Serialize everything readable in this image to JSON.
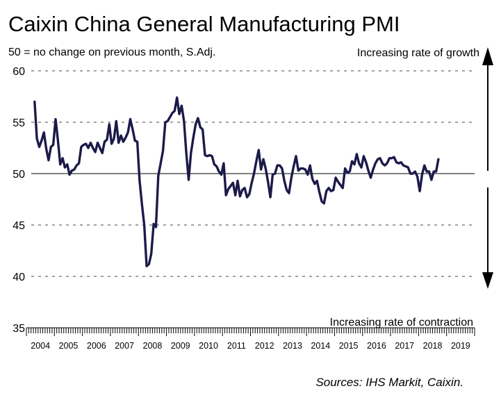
{
  "chart_data": {
    "type": "line",
    "title": "Caixin China General Manufacturing PMI",
    "subtitle": "50 = no change on previous month, S.Adj.",
    "upper_note": "Increasing rate of growth",
    "lower_note": "Increasing rate of contraction",
    "source": "Sources: IHS Markit, Caixin.",
    "xlabel": "",
    "ylabel": "",
    "ylim": [
      35,
      60
    ],
    "yticks": [
      35,
      40,
      45,
      50,
      55,
      60
    ],
    "reference_line": 50,
    "grid": "horizontal dashed",
    "x_categories": [
      "2004",
      "2005",
      "2006",
      "2007",
      "2008",
      "2009",
      "2010",
      "2011",
      "2012",
      "2013",
      "2014",
      "2015",
      "2016",
      "2017",
      "2018",
      "2019"
    ],
    "x_start": "2004-04",
    "x_end": "2019-07",
    "series": [
      {
        "color": "#1c1a4a",
        "points": [
          [
            "2004-04",
            57.0
          ],
          [
            "2004-05",
            53.4
          ],
          [
            "2004-06",
            52.6
          ],
          [
            "2004-07",
            53.2
          ],
          [
            "2004-08",
            54.0
          ],
          [
            "2004-09",
            52.4
          ],
          [
            "2004-10",
            51.3
          ],
          [
            "2004-11",
            52.6
          ],
          [
            "2004-12",
            52.8
          ],
          [
            "2005-01",
            55.3
          ],
          [
            "2005-02",
            53.2
          ],
          [
            "2005-03",
            50.9
          ],
          [
            "2005-04",
            51.5
          ],
          [
            "2005-05",
            50.6
          ],
          [
            "2005-06",
            50.9
          ],
          [
            "2005-07",
            49.9
          ],
          [
            "2005-08",
            50.3
          ],
          [
            "2005-09",
            50.4
          ],
          [
            "2005-10",
            50.8
          ],
          [
            "2005-11",
            51.0
          ],
          [
            "2005-12",
            52.6
          ],
          [
            "2006-01",
            52.8
          ],
          [
            "2006-02",
            52.9
          ],
          [
            "2006-03",
            52.5
          ],
          [
            "2006-04",
            53.0
          ],
          [
            "2006-05",
            52.5
          ],
          [
            "2006-06",
            52.1
          ],
          [
            "2006-07",
            53.0
          ],
          [
            "2006-08",
            52.5
          ],
          [
            "2006-09",
            52.0
          ],
          [
            "2006-10",
            53.1
          ],
          [
            "2006-11",
            53.3
          ],
          [
            "2006-12",
            54.8
          ],
          [
            "2007-01",
            52.9
          ],
          [
            "2007-02",
            53.4
          ],
          [
            "2007-03",
            55.1
          ],
          [
            "2007-04",
            53.0
          ],
          [
            "2007-05",
            53.7
          ],
          [
            "2007-06",
            53.1
          ],
          [
            "2007-07",
            53.5
          ],
          [
            "2007-08",
            54.0
          ],
          [
            "2007-09",
            55.3
          ],
          [
            "2007-10",
            54.3
          ],
          [
            "2007-11",
            53.2
          ],
          [
            "2007-12",
            53.1
          ],
          [
            "2008-01",
            49.3
          ],
          [
            "2008-02",
            47.0
          ],
          [
            "2008-03",
            45.0
          ],
          [
            "2008-04",
            41.0
          ],
          [
            "2008-05",
            41.2
          ],
          [
            "2008-06",
            42.2
          ],
          [
            "2008-07",
            45.1
          ],
          [
            "2008-08",
            44.8
          ],
          [
            "2008-09",
            49.8
          ],
          [
            "2008-10",
            51.0
          ],
          [
            "2008-11",
            52.2
          ],
          [
            "2008-12",
            55.0
          ],
          [
            "2009-01",
            55.1
          ],
          [
            "2009-02",
            55.5
          ],
          [
            "2009-03",
            55.9
          ],
          [
            "2009-04",
            56.1
          ],
          [
            "2009-05",
            57.4
          ],
          [
            "2009-06",
            55.8
          ],
          [
            "2009-07",
            56.6
          ],
          [
            "2009-08",
            55.1
          ],
          [
            "2009-09",
            52.0
          ],
          [
            "2009-10",
            49.4
          ],
          [
            "2009-11",
            52.0
          ],
          [
            "2009-12",
            53.5
          ],
          [
            "2010-01",
            54.8
          ],
          [
            "2010-02",
            55.4
          ],
          [
            "2010-03",
            54.5
          ],
          [
            "2010-04",
            54.3
          ],
          [
            "2010-05",
            51.8
          ],
          [
            "2010-06",
            51.7
          ],
          [
            "2010-07",
            51.8
          ],
          [
            "2010-08",
            51.7
          ],
          [
            "2010-09",
            50.9
          ],
          [
            "2010-10",
            50.7
          ],
          [
            "2010-11",
            50.2
          ],
          [
            "2010-12",
            49.9
          ],
          [
            "2011-01",
            51.0
          ],
          [
            "2011-02",
            47.9
          ],
          [
            "2011-03",
            48.5
          ],
          [
            "2011-04",
            48.8
          ],
          [
            "2011-05",
            49.1
          ],
          [
            "2011-06",
            47.9
          ],
          [
            "2011-07",
            49.3
          ],
          [
            "2011-08",
            47.8
          ],
          [
            "2011-09",
            48.4
          ],
          [
            "2011-10",
            48.6
          ],
          [
            "2011-11",
            47.7
          ],
          [
            "2011-12",
            48.0
          ],
          [
            "2012-01",
            49.1
          ],
          [
            "2012-02",
            50.0
          ],
          [
            "2012-03",
            51.2
          ],
          [
            "2012-04",
            52.3
          ],
          [
            "2012-05",
            50.4
          ],
          [
            "2012-06",
            51.4
          ],
          [
            "2012-07",
            50.5
          ],
          [
            "2012-08",
            49.2
          ],
          [
            "2012-09",
            47.7
          ],
          [
            "2012-10",
            49.9
          ],
          [
            "2012-11",
            50.0
          ],
          [
            "2012-12",
            50.8
          ],
          [
            "2013-01",
            50.8
          ],
          [
            "2013-02",
            50.5
          ],
          [
            "2013-03",
            49.3
          ],
          [
            "2013-04",
            48.4
          ],
          [
            "2013-05",
            48.1
          ],
          [
            "2013-06",
            49.6
          ],
          [
            "2013-07",
            50.7
          ],
          [
            "2013-08",
            51.7
          ],
          [
            "2013-09",
            50.3
          ],
          [
            "2013-10",
            50.5
          ],
          [
            "2013-11",
            50.5
          ],
          [
            "2013-12",
            50.4
          ],
          [
            "2014-01",
            49.9
          ],
          [
            "2014-02",
            50.8
          ],
          [
            "2014-03",
            49.5
          ],
          [
            "2014-04",
            49.0
          ],
          [
            "2014-05",
            49.3
          ],
          [
            "2014-06",
            48.2
          ],
          [
            "2014-07",
            47.3
          ],
          [
            "2014-08",
            47.1
          ],
          [
            "2014-09",
            48.3
          ],
          [
            "2014-10",
            48.6
          ],
          [
            "2014-11",
            48.3
          ],
          [
            "2014-12",
            48.4
          ],
          [
            "2015-01",
            49.6
          ],
          [
            "2015-02",
            49.2
          ],
          [
            "2015-03",
            48.9
          ],
          [
            "2015-04",
            48.6
          ],
          [
            "2015-05",
            50.5
          ],
          [
            "2015-06",
            50.1
          ],
          [
            "2015-07",
            50.2
          ],
          [
            "2015-08",
            51.2
          ],
          [
            "2015-09",
            50.9
          ],
          [
            "2015-10",
            51.9
          ],
          [
            "2015-11",
            51.0
          ],
          [
            "2015-12",
            50.6
          ],
          [
            "2016-01",
            51.7
          ],
          [
            "2016-02",
            51.1
          ],
          [
            "2016-03",
            50.3
          ],
          [
            "2016-04",
            49.6
          ],
          [
            "2016-05",
            50.4
          ],
          [
            "2016-06",
            51.0
          ],
          [
            "2016-07",
            51.4
          ],
          [
            "2016-08",
            51.5
          ],
          [
            "2016-09",
            51.0
          ],
          [
            "2016-10",
            50.8
          ],
          [
            "2016-11",
            51.0
          ],
          [
            "2016-12",
            51.5
          ],
          [
            "2017-01",
            51.5
          ],
          [
            "2017-02",
            51.6
          ],
          [
            "2017-03",
            51.1
          ],
          [
            "2017-04",
            51.0
          ],
          [
            "2017-05",
            51.1
          ],
          [
            "2017-06",
            50.8
          ],
          [
            "2017-07",
            50.7
          ],
          [
            "2017-08",
            50.6
          ],
          [
            "2017-09",
            50.0
          ],
          [
            "2017-10",
            50.0
          ],
          [
            "2017-11",
            50.2
          ],
          [
            "2017-12",
            49.7
          ],
          [
            "2018-01",
            48.3
          ],
          [
            "2018-02",
            49.9
          ],
          [
            "2018-03",
            50.8
          ],
          [
            "2018-04",
            50.2
          ],
          [
            "2018-05",
            50.2
          ],
          [
            "2018-06",
            49.4
          ],
          [
            "2018-07",
            50.2
          ],
          [
            "2018-08",
            50.2
          ],
          [
            "2018-09",
            51.4
          ]
        ]
      }
    ]
  }
}
